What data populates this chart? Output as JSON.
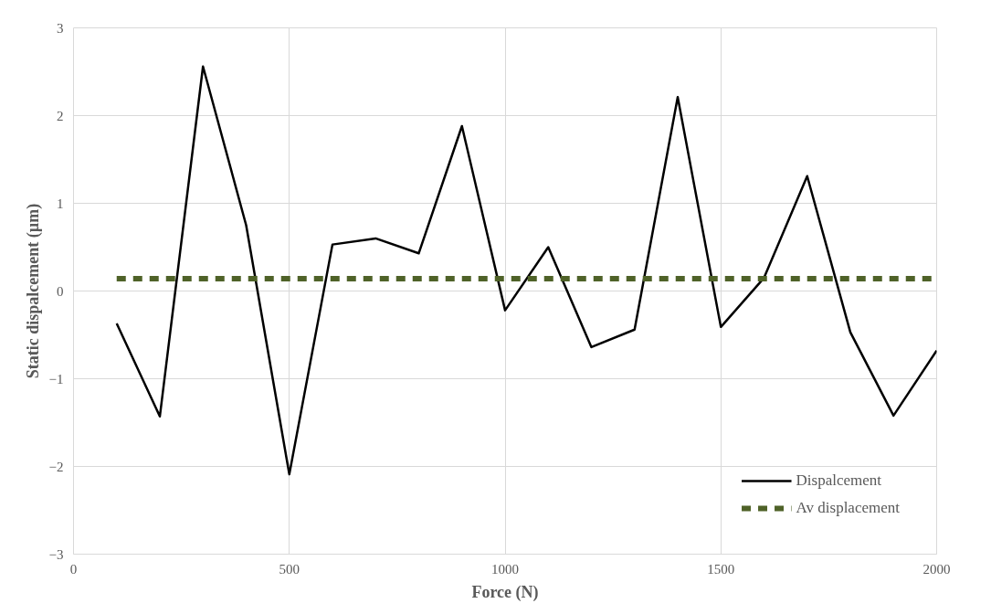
{
  "chart_data": {
    "type": "line",
    "xlabel": "Force (N)",
    "ylabel": "Static dispalcement (µm)",
    "xlim": [
      0,
      2000
    ],
    "ylim": [
      -3,
      3
    ],
    "xticks": [
      0,
      500,
      1000,
      1500,
      2000
    ],
    "yticks": [
      -3,
      -2,
      -1,
      0,
      1,
      2,
      3
    ],
    "grid": true,
    "legend": "bottom right",
    "marker": "none",
    "series": [
      {
        "name": "Dispalcement",
        "color": "#000000",
        "line_style": "solid",
        "x": [
          100,
          200,
          300,
          400,
          500,
          600,
          700,
          800,
          900,
          1000,
          1100,
          1200,
          1300,
          1400,
          1500,
          1600,
          1700,
          1800,
          1900,
          2000
        ],
        "values": [
          -0.37,
          -1.43,
          2.56,
          0.75,
          -2.09,
          0.53,
          0.6,
          0.43,
          1.88,
          -0.22,
          0.5,
          -0.64,
          -0.44,
          2.21,
          -0.41,
          0.15,
          1.31,
          -0.47,
          -1.42,
          -0.68
        ]
      },
      {
        "name": "Av displacement",
        "color": "#4f6228",
        "line_style": "dashed",
        "x": [
          100,
          2000
        ],
        "values": [
          0.14,
          0.14
        ]
      }
    ]
  }
}
